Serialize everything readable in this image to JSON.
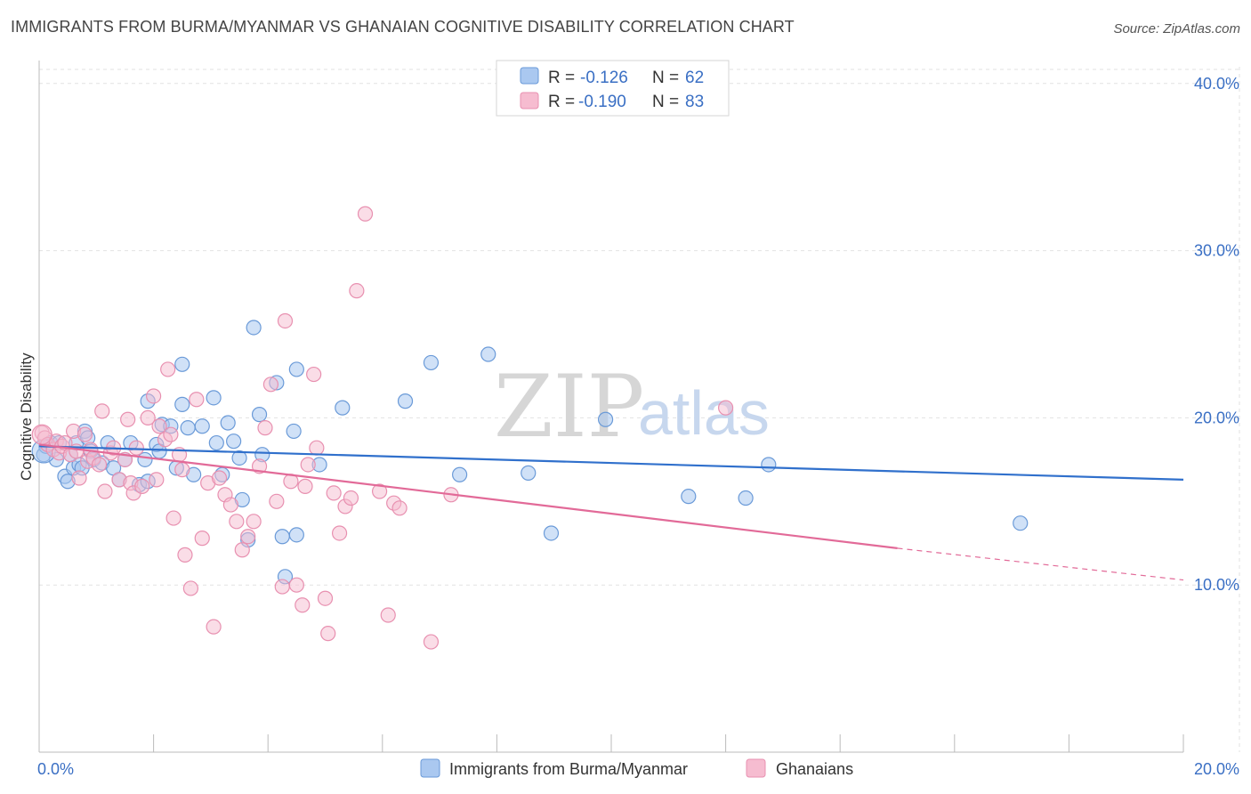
{
  "header": {
    "title": "IMMIGRANTS FROM BURMA/MYANMAR VS GHANAIAN COGNITIVE DISABILITY CORRELATION CHART",
    "source": "Source: ZipAtlas.com"
  },
  "watermark": {
    "zip": "ZIP",
    "atlas": "atlas"
  },
  "colors": {
    "blue_fill": "#aac8f0",
    "blue_stroke": "#6a9ad8",
    "blue_line": "#3070cc",
    "pink_fill": "#f6bcd0",
    "pink_stroke": "#e890b0",
    "pink_line": "#e26a98",
    "axis_text": "#3a6fc4",
    "grid": "#e2e2e2"
  },
  "legend": {
    "rows": [
      {
        "r_label": "R =",
        "r_value": "-0.126",
        "n_label": "N =",
        "n_value": "62"
      },
      {
        "r_label": "R =",
        "r_value": "-0.190",
        "n_label": "N =",
        "n_value": "83"
      }
    ]
  },
  "bottom_legend": [
    "Immigrants from Burma/Myanmar",
    "Ghanaians"
  ],
  "chart_data": {
    "type": "scatter",
    "xlabel": "",
    "ylabel": "Cognitive Disability",
    "xlim": [
      0,
      20
    ],
    "ylim": [
      0,
      41
    ],
    "x_tick_labels": [
      "0.0%",
      "20.0%"
    ],
    "y_ticks": [
      10,
      20,
      30,
      40
    ],
    "y_tick_labels": [
      "10.0%",
      "20.0%",
      "30.0%",
      "40.0%"
    ],
    "grid": true,
    "legend_position": "top-center",
    "series": [
      {
        "name": "Immigrants from Burma/Myanmar",
        "trend": {
          "x": [
            0,
            20
          ],
          "y": [
            18.3,
            16.3
          ]
        },
        "points": [
          [
            0.08,
            17.8
          ],
          [
            0.12,
            18.3
          ],
          [
            0.2,
            18.5
          ],
          [
            0.3,
            17.5
          ],
          [
            0.35,
            18.5
          ],
          [
            0.45,
            16.5
          ],
          [
            0.5,
            16.2
          ],
          [
            0.55,
            17.8
          ],
          [
            0.6,
            17
          ],
          [
            0.65,
            18.5
          ],
          [
            0.7,
            17.2
          ],
          [
            0.75,
            17
          ],
          [
            0.8,
            19.2
          ],
          [
            0.85,
            18.8
          ],
          [
            0.9,
            18
          ],
          [
            0.95,
            17.5
          ],
          [
            1.1,
            17.3
          ],
          [
            1.2,
            18.5
          ],
          [
            1.3,
            17
          ],
          [
            1.4,
            16.3
          ],
          [
            1.5,
            17.5
          ],
          [
            1.6,
            18.5
          ],
          [
            1.75,
            16
          ],
          [
            1.85,
            17.5
          ],
          [
            1.9,
            16.2
          ],
          [
            2.05,
            18.4
          ],
          [
            2.1,
            18
          ],
          [
            1.9,
            21
          ],
          [
            2.15,
            19.6
          ],
          [
            2.3,
            19.5
          ],
          [
            2.4,
            17
          ],
          [
            2.5,
            20.8
          ],
          [
            2.5,
            23.2
          ],
          [
            2.6,
            19.4
          ],
          [
            2.7,
            16.6
          ],
          [
            2.85,
            19.5
          ],
          [
            3.05,
            21.2
          ],
          [
            3.1,
            18.5
          ],
          [
            3.2,
            16.6
          ],
          [
            3.3,
            19.7
          ],
          [
            3.4,
            18.6
          ],
          [
            3.5,
            17.6
          ],
          [
            3.55,
            15.1
          ],
          [
            3.65,
            12.7
          ],
          [
            3.75,
            25.4
          ],
          [
            3.85,
            20.2
          ],
          [
            3.9,
            17.8
          ],
          [
            4.15,
            22.1
          ],
          [
            4.25,
            12.9
          ],
          [
            4.3,
            10.5
          ],
          [
            4.5,
            22.9
          ],
          [
            4.45,
            19.2
          ],
          [
            4.5,
            13
          ],
          [
            4.9,
            17.2
          ],
          [
            5.3,
            20.6
          ],
          [
            6.4,
            21
          ],
          [
            6.85,
            23.3
          ],
          [
            7.35,
            16.6
          ],
          [
            7.85,
            23.8
          ],
          [
            8.55,
            16.7
          ],
          [
            8.95,
            13.1
          ],
          [
            9.9,
            19.9
          ],
          [
            11.35,
            15.3
          ],
          [
            12.35,
            15.2
          ],
          [
            12.75,
            17.2
          ],
          [
            17.15,
            13.7
          ]
        ]
      },
      {
        "name": "Ghanaians",
        "trend": {
          "x": [
            0,
            15
          ],
          "y": [
            18.4,
            12.2
          ]
        },
        "trend_dashed": {
          "x": [
            15,
            20
          ],
          "y": [
            12.2,
            10.3
          ]
        },
        "points": [
          [
            0.05,
            19.1
          ],
          [
            0.1,
            18.8
          ],
          [
            0.15,
            18.4
          ],
          [
            0.25,
            18.1
          ],
          [
            0.3,
            18.6
          ],
          [
            0.35,
            17.9
          ],
          [
            0.4,
            18.3
          ],
          [
            0.45,
            18.5
          ],
          [
            0.55,
            17.8
          ],
          [
            0.6,
            19.2
          ],
          [
            0.65,
            18
          ],
          [
            0.7,
            16.4
          ],
          [
            0.8,
            19
          ],
          [
            0.85,
            17.4
          ],
          [
            0.9,
            18.1
          ],
          [
            0.95,
            17.6
          ],
          [
            1.05,
            17.2
          ],
          [
            1.1,
            20.4
          ],
          [
            1.15,
            15.6
          ],
          [
            1.25,
            17.9
          ],
          [
            1.3,
            18.2
          ],
          [
            1.4,
            16.3
          ],
          [
            1.5,
            17.5
          ],
          [
            1.55,
            19.9
          ],
          [
            1.6,
            16.1
          ],
          [
            1.65,
            15.5
          ],
          [
            1.7,
            18.2
          ],
          [
            1.8,
            15.9
          ],
          [
            1.9,
            20
          ],
          [
            2,
            21.3
          ],
          [
            2.05,
            16.3
          ],
          [
            2.1,
            19.5
          ],
          [
            2.2,
            18.7
          ],
          [
            2.25,
            22.9
          ],
          [
            2.3,
            19
          ],
          [
            2.35,
            14
          ],
          [
            2.45,
            17.8
          ],
          [
            2.5,
            16.9
          ],
          [
            2.55,
            11.8
          ],
          [
            2.65,
            9.8
          ],
          [
            2.75,
            21.1
          ],
          [
            2.85,
            12.8
          ],
          [
            2.95,
            16.1
          ],
          [
            3.05,
            7.5
          ],
          [
            3.15,
            16.4
          ],
          [
            3.25,
            15.4
          ],
          [
            3.35,
            14.8
          ],
          [
            3.45,
            13.8
          ],
          [
            3.55,
            12.1
          ],
          [
            3.65,
            12.9
          ],
          [
            3.75,
            13.8
          ],
          [
            3.85,
            17.1
          ],
          [
            3.95,
            19.4
          ],
          [
            4.05,
            22
          ],
          [
            4.15,
            15
          ],
          [
            4.25,
            9.9
          ],
          [
            4.3,
            25.8
          ],
          [
            4.4,
            16.2
          ],
          [
            4.5,
            10
          ],
          [
            4.6,
            8.8
          ],
          [
            4.65,
            15.9
          ],
          [
            4.7,
            17.2
          ],
          [
            4.8,
            22.6
          ],
          [
            4.85,
            18.2
          ],
          [
            5.0,
            9.2
          ],
          [
            5.05,
            7.1
          ],
          [
            5.15,
            15.5
          ],
          [
            5.25,
            13.1
          ],
          [
            5.35,
            14.7
          ],
          [
            5.45,
            15.2
          ],
          [
            5.55,
            27.6
          ],
          [
            5.7,
            32.2
          ],
          [
            5.95,
            15.6
          ],
          [
            6.1,
            8.2
          ],
          [
            6.2,
            14.9
          ],
          [
            6.3,
            14.6
          ],
          [
            6.85,
            6.6
          ],
          [
            7.2,
            15.4
          ],
          [
            12.0,
            20.6
          ]
        ]
      }
    ]
  }
}
